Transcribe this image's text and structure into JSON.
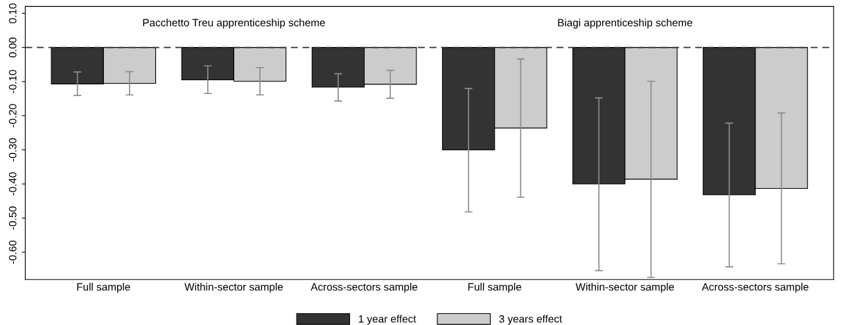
{
  "chart_data": {
    "type": "bar",
    "categories": [
      "Full sample",
      "Within-sector sample",
      "Across-sectors sample",
      "Full sample",
      "Within-sector sample",
      "Across-sectors sample"
    ],
    "series": [
      {
        "name": "1 year effect",
        "color": "#333333",
        "values": [
          -0.107,
          -0.095,
          -0.116,
          -0.3,
          -0.4,
          -0.432
        ],
        "errors": [
          [
            -0.141,
            -0.072
          ],
          [
            -0.135,
            -0.054
          ],
          [
            -0.157,
            -0.077
          ],
          [
            -0.482,
            -0.12
          ],
          [
            -0.654,
            -0.148
          ],
          [
            -0.643,
            -0.222
          ]
        ]
      },
      {
        "name": "3 years effect",
        "color": "#cccccc",
        "values": [
          -0.105,
          -0.099,
          -0.108,
          -0.236,
          -0.386,
          -0.413
        ],
        "errors": [
          [
            -0.139,
            -0.071
          ],
          [
            -0.139,
            -0.059
          ],
          [
            -0.149,
            -0.067
          ],
          [
            -0.439,
            -0.034
          ],
          [
            -0.674,
            -0.099
          ],
          [
            -0.634,
            -0.192
          ]
        ]
      }
    ],
    "ylim": [
      -0.68,
      0.12
    ],
    "yticks": [
      {
        "value": 0.1,
        "label": "0.10"
      },
      {
        "value": 0.0,
        "label": "0.00"
      },
      {
        "value": -0.1,
        "label": "-0.10"
      },
      {
        "value": -0.2,
        "label": "-0.20"
      },
      {
        "value": -0.3,
        "label": "-0.30"
      },
      {
        "value": -0.4,
        "label": "-0.40"
      },
      {
        "value": -0.5,
        "label": "-0.50"
      },
      {
        "value": -0.6,
        "label": "-0.60"
      }
    ],
    "ref_lines": [
      {
        "axis": "y",
        "value": 0,
        "label": null,
        "line_style": "dashed",
        "color": "#333333"
      }
    ],
    "annotations": [
      "Pacchetto Treu apprenticeship scheme",
      "Biagi apprenticeship scheme"
    ],
    "grid": false,
    "legend": "bottom"
  }
}
